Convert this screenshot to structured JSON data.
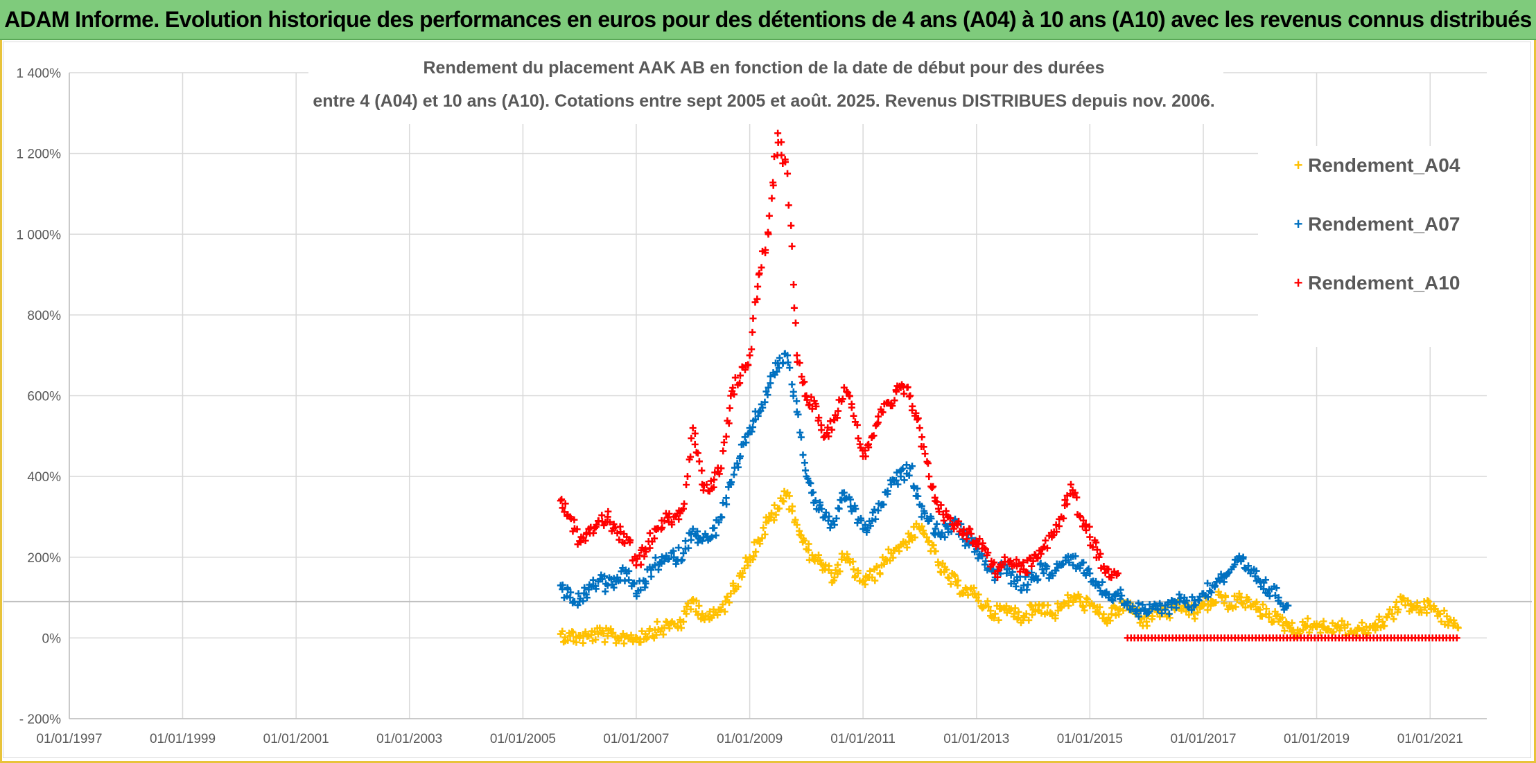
{
  "banner": {
    "title": "ADAM Informe. Evolution historique des performances en euros pour des détentions de 4 ans (A04) à 10 ans (A10) avec les revenus connus distribués"
  },
  "colors": {
    "banner_bg": "#7fcb7c",
    "frame_accent": "#e8c33a",
    "A04": "#ffc000",
    "A07": "#0070c0",
    "A10": "#ff0000",
    "grid": "#d9d9d9",
    "reference_line": "#bfbfbf"
  },
  "chart_data": {
    "type": "scatter",
    "marker": "plus",
    "title_lines": [
      "Rendement du placement AAK AB en fonction de la date de début pour des durées",
      "entre 4 (A04) et 10 ans (A10). Cotations entre sept 2005 et août. 2025. Revenus DISTRIBUES depuis nov. 2006."
    ],
    "xlabel": "",
    "ylabel": "",
    "xlim": [
      "1997-01-01",
      "2022-01-01"
    ],
    "ylim": [
      -200,
      1400
    ],
    "x_ticks": [
      "01/01/1997",
      "01/01/1999",
      "01/01/2001",
      "01/01/2003",
      "01/01/2005",
      "01/01/2007",
      "01/01/2009",
      "01/01/2011",
      "01/01/2013",
      "01/01/2015",
      "01/01/2017",
      "01/01/2019",
      "01/01/2021"
    ],
    "y_ticks": [
      "- 200%",
      "0%",
      "200%",
      "400%",
      "600%",
      "800%",
      "1 000%",
      "1 200%",
      "1 400%"
    ],
    "grid": true,
    "reference_line_y": 90,
    "legend_position": "right",
    "legend": [
      "Rendement_A04",
      "Rendement_A07",
      "Rendement_A10"
    ],
    "series": [
      {
        "name": "Rendement_A04",
        "x": [
          "2005-09-01",
          "2005-11-01",
          "2006-01-01",
          "2006-03-01",
          "2006-05-01",
          "2006-07-01",
          "2006-09-01",
          "2006-11-01",
          "2007-01-01",
          "2007-03-01",
          "2007-05-01",
          "2007-07-01",
          "2007-09-01",
          "2007-11-01",
          "2008-01-01",
          "2008-03-01",
          "2008-05-01",
          "2008-07-01",
          "2008-09-01",
          "2008-11-01",
          "2009-01-01",
          "2009-03-01",
          "2009-05-01",
          "2009-07-01",
          "2009-09-01",
          "2009-11-01",
          "2010-01-01",
          "2010-03-01",
          "2010-05-01",
          "2010-07-01",
          "2010-09-01",
          "2010-11-01",
          "2011-01-01",
          "2011-03-01",
          "2011-05-01",
          "2011-07-01",
          "2011-09-01",
          "2011-11-01",
          "2012-01-01",
          "2012-03-01",
          "2012-05-01",
          "2012-07-01",
          "2012-09-01",
          "2012-11-01",
          "2013-01-01",
          "2013-03-01",
          "2013-05-01",
          "2013-07-01",
          "2013-09-01",
          "2013-11-01",
          "2014-01-01",
          "2014-03-01",
          "2014-05-01",
          "2014-07-01",
          "2014-09-01",
          "2014-11-01",
          "2015-01-01",
          "2015-03-01",
          "2015-05-01",
          "2015-07-01",
          "2015-09-01",
          "2015-11-01",
          "2016-01-01",
          "2016-03-01",
          "2016-05-01",
          "2016-07-01",
          "2016-09-01",
          "2016-11-01",
          "2017-01-01",
          "2017-03-01",
          "2017-05-01",
          "2017-07-01",
          "2017-09-01",
          "2017-11-01",
          "2018-01-01",
          "2018-03-01",
          "2018-05-01",
          "2018-07-01",
          "2018-09-01",
          "2018-11-01",
          "2019-01-01",
          "2019-03-01",
          "2019-05-01",
          "2019-07-01",
          "2019-09-01",
          "2019-11-01",
          "2020-01-01",
          "2020-03-01",
          "2020-05-01",
          "2020-07-01",
          "2020-09-01",
          "2020-11-01",
          "2021-01-01",
          "2021-03-01",
          "2021-05-01",
          "2021-07-01"
        ],
        "values": [
          10,
          5,
          0,
          5,
          10,
          5,
          0,
          5,
          0,
          10,
          20,
          25,
          35,
          40,
          95,
          60,
          50,
          70,
          110,
          160,
          200,
          240,
          290,
          320,
          360,
          280,
          220,
          200,
          170,
          150,
          200,
          170,
          140,
          150,
          180,
          210,
          230,
          250,
          270,
          240,
          180,
          150,
          130,
          120,
          100,
          80,
          60,
          70,
          60,
          55,
          70,
          80,
          60,
          75,
          100,
          90,
          80,
          60,
          50,
          70,
          80,
          60,
          40,
          70,
          60,
          70,
          80,
          60,
          80,
          90,
          100,
          80,
          100,
          80,
          70,
          60,
          40,
          30,
          20,
          30,
          35,
          20,
          30,
          25,
          15,
          20,
          30,
          40,
          60,
          90,
          80,
          70,
          80,
          60,
          40,
          25
        ]
      },
      {
        "name": "Rendement_A07",
        "x": [
          "2005-09-01",
          "2005-11-01",
          "2006-01-01",
          "2006-03-01",
          "2006-05-01",
          "2006-07-01",
          "2006-09-01",
          "2006-11-01",
          "2007-01-01",
          "2007-03-01",
          "2007-05-01",
          "2007-07-01",
          "2007-09-01",
          "2007-11-01",
          "2008-01-01",
          "2008-03-01",
          "2008-05-01",
          "2008-07-01",
          "2008-09-01",
          "2008-11-01",
          "2009-01-01",
          "2009-03-01",
          "2009-05-01",
          "2009-07-01",
          "2009-09-01",
          "2009-11-01",
          "2010-01-01",
          "2010-03-01",
          "2010-05-01",
          "2010-07-01",
          "2010-09-01",
          "2010-11-01",
          "2011-01-01",
          "2011-03-01",
          "2011-05-01",
          "2011-07-01",
          "2011-09-01",
          "2011-11-01",
          "2012-01-01",
          "2012-03-01",
          "2012-05-01",
          "2012-07-01",
          "2012-09-01",
          "2012-11-01",
          "2013-01-01",
          "2013-03-01",
          "2013-05-01",
          "2013-07-01",
          "2013-09-01",
          "2013-11-01",
          "2014-01-01",
          "2014-03-01",
          "2014-05-01",
          "2014-07-01",
          "2014-09-01",
          "2014-11-01",
          "2015-01-01",
          "2015-03-01",
          "2015-05-01",
          "2015-07-01",
          "2015-09-01",
          "2015-11-01",
          "2016-01-01",
          "2016-03-01",
          "2016-05-01",
          "2016-07-01",
          "2016-09-01",
          "2016-11-01",
          "2017-01-01",
          "2017-03-01",
          "2017-05-01",
          "2017-07-01",
          "2017-09-01",
          "2017-11-01",
          "2018-01-01",
          "2018-03-01",
          "2018-05-01",
          "2018-07-01"
        ],
        "values": [
          130,
          100,
          90,
          120,
          140,
          130,
          150,
          160,
          110,
          140,
          180,
          190,
          200,
          210,
          270,
          240,
          250,
          300,
          380,
          450,
          520,
          560,
          620,
          680,
          700,
          560,
          400,
          340,
          300,
          280,
          360,
          320,
          270,
          290,
          330,
          380,
          400,
          420,
          330,
          290,
          260,
          270,
          280,
          240,
          220,
          190,
          150,
          180,
          140,
          130,
          150,
          170,
          160,
          180,
          200,
          180,
          160,
          130,
          100,
          110,
          90,
          70,
          60,
          80,
          70,
          90,
          100,
          80,
          110,
          130,
          150,
          170,
          190,
          160,
          140,
          120,
          100,
          80
        ]
      },
      {
        "name": "Rendement_A10",
        "x": [
          "2005-09-01",
          "2005-11-01",
          "2006-01-01",
          "2006-03-01",
          "2006-05-01",
          "2006-07-01",
          "2006-09-01",
          "2006-11-01",
          "2007-01-01",
          "2007-03-01",
          "2007-05-01",
          "2007-07-01",
          "2007-09-01",
          "2007-11-01",
          "2008-01-01",
          "2008-03-01",
          "2008-05-01",
          "2008-07-01",
          "2008-09-01",
          "2008-11-01",
          "2009-01-01",
          "2009-03-01",
          "2009-05-01",
          "2009-07-01",
          "2009-09-01",
          "2009-11-01",
          "2010-01-01",
          "2010-03-01",
          "2010-05-01",
          "2010-07-01",
          "2010-09-01",
          "2010-11-01",
          "2011-01-01",
          "2011-03-01",
          "2011-05-01",
          "2011-07-01",
          "2011-09-01",
          "2011-11-01",
          "2012-01-01",
          "2012-03-01",
          "2012-05-01",
          "2012-07-01",
          "2012-09-01",
          "2012-11-01",
          "2013-01-01",
          "2013-03-01",
          "2013-05-01",
          "2013-07-01",
          "2013-09-01",
          "2013-11-01",
          "2014-01-01",
          "2014-03-01",
          "2014-05-01",
          "2014-07-01",
          "2014-09-01",
          "2014-11-01",
          "2015-01-01",
          "2015-03-01",
          "2015-05-01",
          "2015-07-01"
        ],
        "values": [
          340,
          300,
          240,
          270,
          290,
          300,
          260,
          250,
          180,
          220,
          270,
          290,
          300,
          320,
          520,
          380,
          370,
          420,
          600,
          650,
          700,
          900,
          1000,
          1250,
          1150,
          700,
          600,
          580,
          500,
          540,
          620,
          550,
          450,
          500,
          560,
          580,
          620,
          600,
          520,
          400,
          320,
          300,
          280,
          260,
          240,
          220,
          160,
          200,
          180,
          170,
          190,
          220,
          250,
          300,
          380,
          300,
          250,
          200,
          170,
          160
        ]
      },
      {
        "name": "Rendement_A10",
        "x": [
          "2015-09-01",
          "2021-07-01"
        ],
        "values": [
          0,
          0
        ],
        "segment": true
      }
    ]
  }
}
